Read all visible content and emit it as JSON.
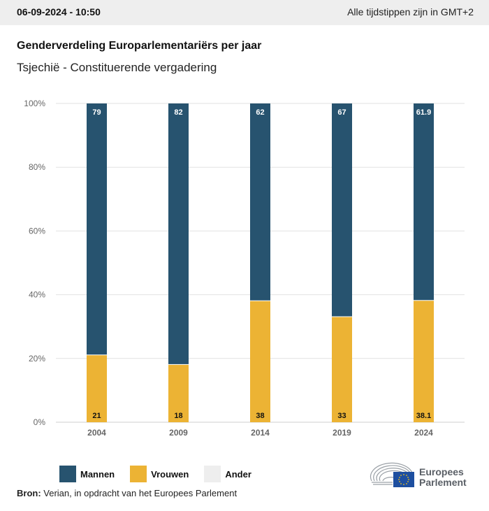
{
  "header": {
    "datetime": "06-09-2024 - 10:50",
    "timezone_note": "Alle tijdstippen zijn in GMT+2"
  },
  "title": "Genderverdeling Europarlementariërs per jaar",
  "subtitle": "Tsjechië - Constituerende vergadering",
  "colors": {
    "mannen": "#27536f",
    "vrouwen": "#ecb334",
    "ander": "#eeeeee",
    "grid": "#e2e2e2",
    "axis_text": "#666666"
  },
  "legend": [
    {
      "label": "Mannen",
      "color": "#27536f"
    },
    {
      "label": "Vrouwen",
      "color": "#ecb334"
    },
    {
      "label": "Ander",
      "color": "#eeeeee"
    }
  ],
  "source": {
    "label": "Bron:",
    "text": " Verian, in opdracht van het Europees Parlement"
  },
  "logo": {
    "line1": "Europees",
    "line2": "Parlement"
  },
  "chart_data": {
    "type": "bar",
    "stacked": true,
    "title": "Genderverdeling Europarlementariërs per jaar",
    "subtitle": "Tsjechië - Constituerende vergadering",
    "xlabel": "",
    "ylabel": "",
    "categories": [
      "2004",
      "2009",
      "2014",
      "2019",
      "2024"
    ],
    "series": [
      {
        "name": "Vrouwen",
        "values": [
          21,
          18,
          38,
          33,
          38.1
        ],
        "labels": [
          "21",
          "18",
          "38",
          "33",
          "38.1"
        ]
      },
      {
        "name": "Mannen",
        "values": [
          79,
          82,
          62,
          67,
          61.9
        ],
        "labels": [
          "79",
          "82",
          "62",
          "67",
          "61.9"
        ]
      },
      {
        "name": "Ander",
        "values": [
          0,
          0,
          0,
          0,
          0
        ]
      }
    ],
    "ylim": [
      0,
      100
    ],
    "yticks": [
      "0%",
      "20%",
      "40%",
      "60%",
      "80%",
      "100%"
    ],
    "ytick_values": [
      0,
      20,
      40,
      60,
      80,
      100
    ],
    "grid": true,
    "legend_position": "bottom-left"
  }
}
